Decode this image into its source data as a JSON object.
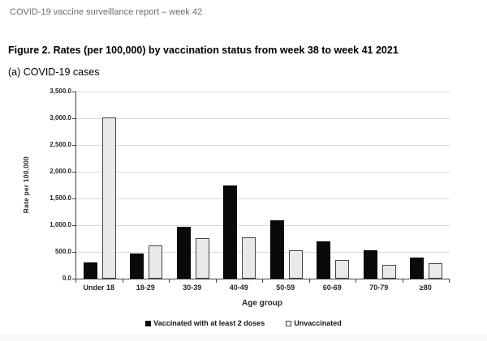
{
  "header": {
    "text": "COVID-19 vaccine surveillance report – week 42"
  },
  "figure": {
    "title": "Figure 2. Rates (per 100,000) by vaccination status from week 38 to week 41 2021",
    "subtitle": "(a) COVID-19 cases"
  },
  "chart_data": {
    "type": "bar",
    "title": "",
    "xlabel": "Age group",
    "ylabel": "Rate per 100,000",
    "ylim": [
      0,
      3500
    ],
    "y_tick_step": 500,
    "y_tick_labels": [
      "0.0",
      "500.0",
      "1,000.0",
      "1,500.0",
      "2,000.0",
      "2,500.0",
      "3,000.0",
      "3,500.0"
    ],
    "categories": [
      "Under 18",
      "18-29",
      "30-39",
      "40-49",
      "50-59",
      "60-69",
      "70-79",
      "≥80"
    ],
    "series": [
      {
        "name": "Vaccinated with at least 2 doses",
        "color": "#0a0a0a",
        "values": [
          310,
          465,
          970,
          1735,
          1085,
          690,
          535,
          400
        ]
      },
      {
        "name": "Unvaccinated",
        "color": "#e9e9e9",
        "values": [
          3015,
          620,
          760,
          775,
          535,
          345,
          265,
          295
        ]
      }
    ],
    "grid": true,
    "legend_position": "bottom"
  },
  "colors": {
    "bar_vaccinated": "#0a0a0a",
    "bar_unvaccinated_fill": "#e9e9e9",
    "bar_border": "#454545",
    "gridline": "#d9d9d9",
    "axis": "#404040",
    "header_text": "#6d6d6d"
  }
}
